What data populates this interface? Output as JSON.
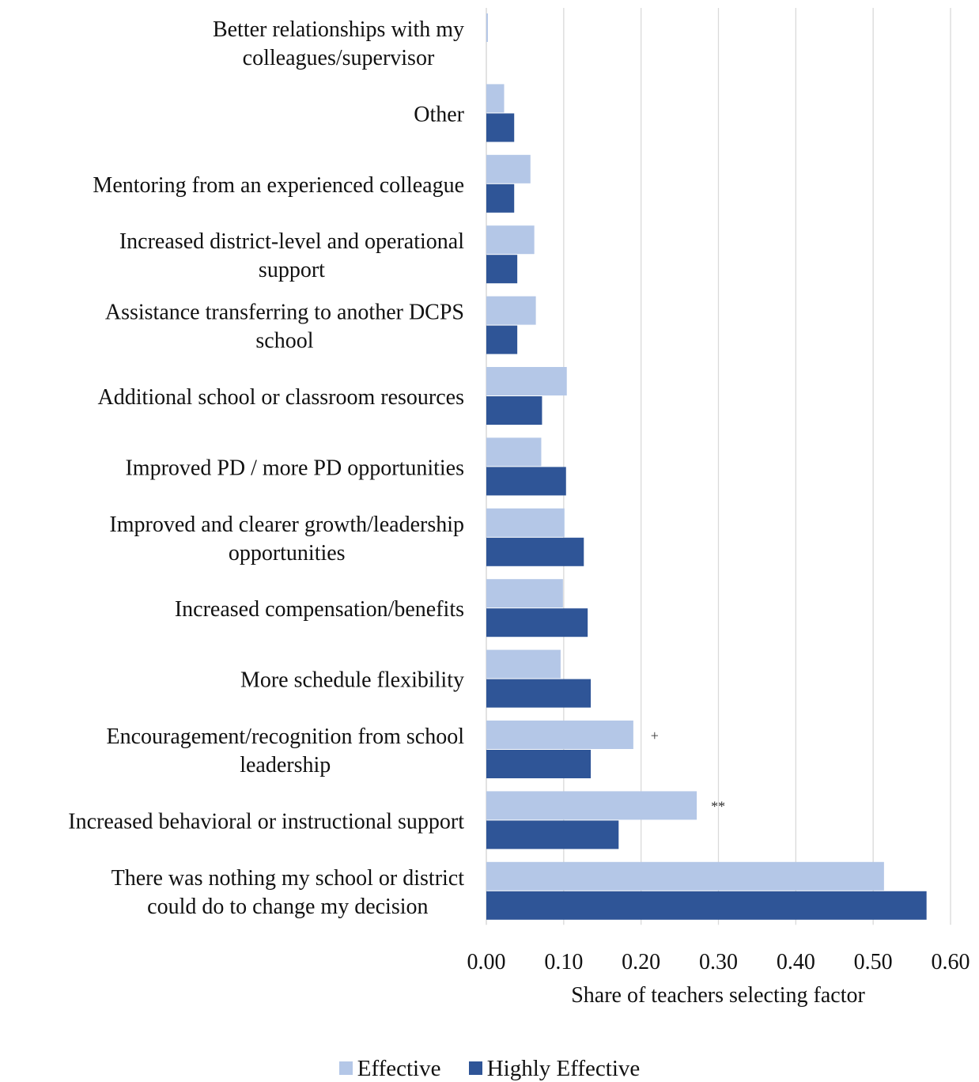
{
  "chart_data": {
    "type": "bar",
    "orientation": "horizontal",
    "title": "",
    "xlabel": "Share of teachers selecting factor",
    "ylabel": "",
    "xlim": [
      0,
      0.6
    ],
    "xticks": [
      "0.00",
      "0.10",
      "0.20",
      "0.30",
      "0.40",
      "0.50",
      "0.60"
    ],
    "grid": true,
    "legend_position": "bottom",
    "categories": [
      [
        "Better relationships with my",
        "colleagues/supervisor"
      ],
      [
        "Other"
      ],
      [
        "Mentoring from an experienced colleague"
      ],
      [
        "Increased district-level and operational",
        "support"
      ],
      [
        "Assistance transferring to another DCPS",
        "school"
      ],
      [
        "Additional school or classroom resources"
      ],
      [
        "Improved PD / more PD opportunities"
      ],
      [
        "Improved and clearer growth/leadership",
        "opportunities"
      ],
      [
        "Increased compensation/benefits"
      ],
      [
        "More schedule flexibility"
      ],
      [
        "Encouragement/recognition from school",
        "leadership"
      ],
      [
        "Increased behavioral or instructional support"
      ],
      [
        "There was nothing my school or district",
        "could do to change my decision"
      ]
    ],
    "series": [
      {
        "name": "Effective",
        "color": "#b4c7e7",
        "values": [
          0.002,
          0.023,
          0.057,
          0.062,
          0.064,
          0.104,
          0.071,
          0.101,
          0.099,
          0.096,
          0.19,
          0.272,
          0.514
        ]
      },
      {
        "name": "Highly Effective",
        "color": "#2f5597",
        "values": [
          0.0,
          0.036,
          0.036,
          0.04,
          0.04,
          0.072,
          0.103,
          0.126,
          0.131,
          0.135,
          0.135,
          0.171,
          0.569
        ]
      }
    ],
    "annotations": [
      {
        "category_index": 10,
        "series": "Effective",
        "text": "+"
      },
      {
        "category_index": 11,
        "series": "Effective",
        "text": "**"
      }
    ]
  },
  "legend": {
    "effective_label": "Effective",
    "highly_effective_label": "Highly Effective"
  }
}
